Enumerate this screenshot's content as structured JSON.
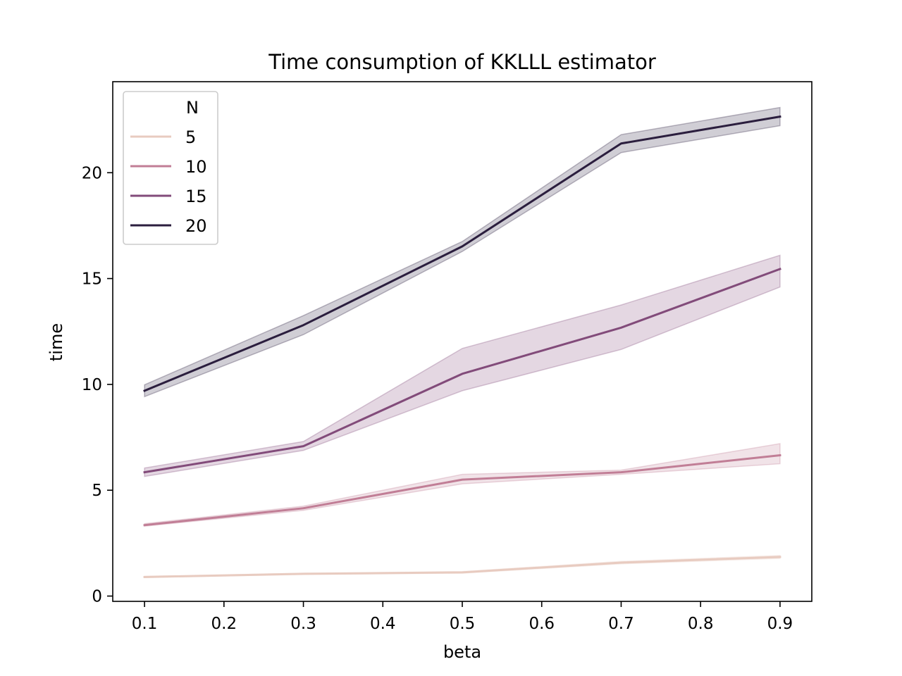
{
  "chart_data": {
    "type": "line",
    "title": "Time consumption of KKLLL estimator",
    "xlabel": "beta",
    "ylabel": "time",
    "x": [
      0.1,
      0.3,
      0.5,
      0.7,
      0.9
    ],
    "xlim": [
      0.06,
      0.94
    ],
    "ylim": [
      -0.25,
      24.3
    ],
    "xticks": [
      "0.1",
      "0.2",
      "0.3",
      "0.4",
      "0.5",
      "0.6",
      "0.7",
      "0.8",
      "0.9"
    ],
    "yticks": [
      "0",
      "5",
      "10",
      "15",
      "20"
    ],
    "grid": false,
    "legend": {
      "title": "N",
      "placement": "upper-left"
    },
    "series": [
      {
        "name": "5",
        "color": "#e8cbc0",
        "values": [
          0.9,
          1.05,
          1.12,
          1.58,
          1.85
        ],
        "ci_lower": [
          0.88,
          1.02,
          1.08,
          1.52,
          1.78
        ],
        "ci_upper": [
          0.93,
          1.08,
          1.16,
          1.64,
          1.92
        ]
      },
      {
        "name": "10",
        "color": "#c17e96",
        "values": [
          3.35,
          4.15,
          5.5,
          5.85,
          6.65
        ],
        "ci_lower": [
          3.3,
          4.05,
          5.3,
          5.75,
          6.25
        ],
        "ci_upper": [
          3.42,
          4.25,
          5.75,
          5.95,
          7.2
        ]
      },
      {
        "name": "15",
        "color": "#824b7a",
        "values": [
          5.85,
          7.08,
          10.5,
          12.68,
          15.45
        ],
        "ci_lower": [
          5.65,
          6.88,
          9.7,
          11.65,
          14.6
        ],
        "ci_upper": [
          6.05,
          7.3,
          11.7,
          13.75,
          16.1
        ]
      },
      {
        "name": "20",
        "color": "#2b1e3e",
        "values": [
          9.7,
          12.8,
          16.52,
          21.38,
          22.65
        ],
        "ci_lower": [
          9.42,
          12.35,
          16.28,
          20.95,
          22.22
        ],
        "ci_upper": [
          9.98,
          13.25,
          16.75,
          21.8,
          23.08
        ]
      }
    ]
  }
}
